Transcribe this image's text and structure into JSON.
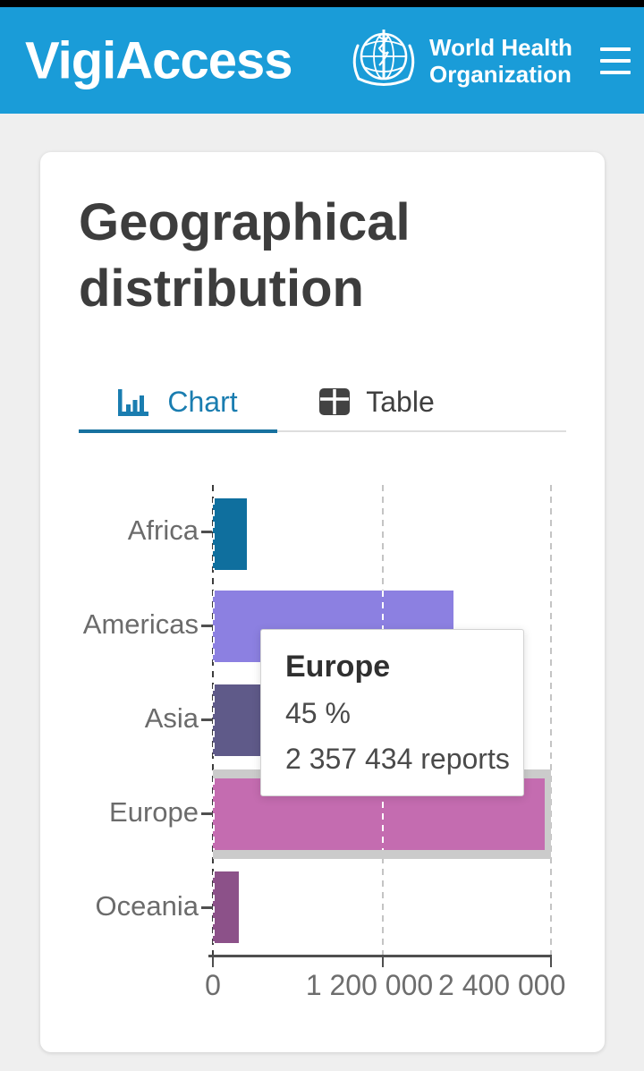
{
  "header": {
    "app_title": "VigiAccess",
    "org_line1": "World Health",
    "org_line2": "Organization"
  },
  "icons": {
    "logo": "who-emblem",
    "menu": "hamburger-icon",
    "chart_tab": "bar-chart-icon",
    "table_tab": "table-icon"
  },
  "card": {
    "title": "Geographical distribution"
  },
  "tabs": [
    {
      "label": "Chart",
      "active": true
    },
    {
      "label": "Table",
      "active": false
    }
  ],
  "chart_data": {
    "type": "bar",
    "orientation": "horizontal",
    "title": "Geographical distribution",
    "categories": [
      "Africa",
      "Americas",
      "Asia",
      "Europe",
      "Oceania"
    ],
    "values": [
      240000,
      1710000,
      750000,
      2357434,
      185000
    ],
    "bar_colors": [
      "#0f6f9e",
      "#8c80e1",
      "#5f5a89",
      "#c46cb0",
      "#8c5189"
    ],
    "xlim": [
      0,
      2400000
    ],
    "x_tick_labels": [
      "0",
      "1 200 000",
      "2 400 000"
    ],
    "x_tick_values": [
      0,
      1200000,
      2400000
    ],
    "grid": "dashed-vertical",
    "highlight": {
      "category": "Europe",
      "band_color": "#cbcbcb"
    },
    "tooltip": {
      "title": "Europe",
      "percent": "45 %",
      "reports": "2 357 434 reports"
    }
  },
  "colors": {
    "header_bg": "#1a9cd8",
    "accent": "#17719f",
    "tab_active": "#1a7db0",
    "page_bg": "#efefef",
    "card_bg": "#ffffff",
    "title_color": "#3d3d3d",
    "axis_color": "#4f4f4f",
    "label_color": "#6b6b6b",
    "highlight_band": "#cbcbcb"
  }
}
